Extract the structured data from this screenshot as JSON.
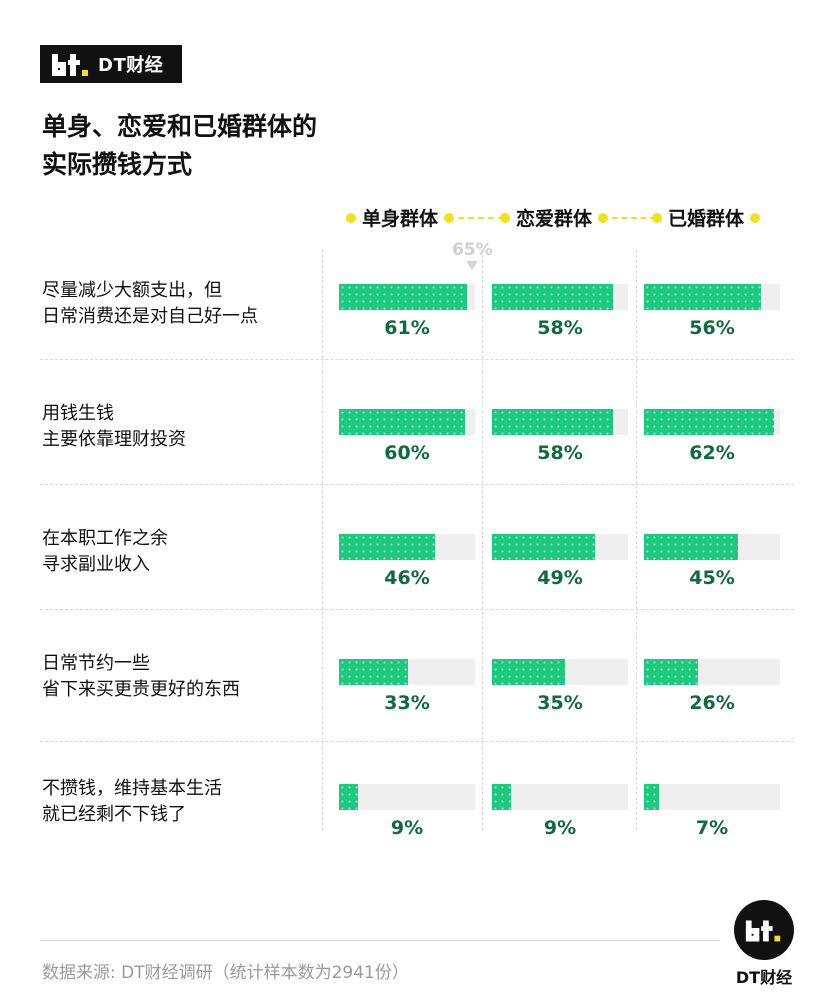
{
  "brand": {
    "name": "DT财经"
  },
  "title": {
    "line1": "单身、恋爱和已婚群体的",
    "line2": "实际攒钱方式"
  },
  "legend": [
    "单身群体",
    "恋爱群体",
    "已婚群体"
  ],
  "marker": {
    "label": "65%"
  },
  "chart_data": {
    "type": "bar",
    "title": "单身、恋爱和已婚群体的实际攒钱方式",
    "categories": [
      [
        "尽量减少大额支出，但",
        "日常消费还是对自己好一点"
      ],
      [
        "用钱生钱",
        "主要依靠理财投资"
      ],
      [
        "在本职工作之余",
        "寻求副业收入"
      ],
      [
        "日常节约一些",
        "省下来买更贵更好的东西"
      ],
      [
        "不攒钱，维持基本生活",
        "就已经剩不下钱了"
      ]
    ],
    "series": [
      {
        "name": "单身群体",
        "values": [
          61,
          60,
          46,
          33,
          9
        ]
      },
      {
        "name": "恋爱群体",
        "values": [
          58,
          58,
          49,
          35,
          9
        ]
      },
      {
        "name": "已婚群体",
        "values": [
          56,
          62,
          45,
          26,
          7
        ]
      }
    ],
    "xlim": [
      0,
      65
    ],
    "value_suffix": "%",
    "colors": {
      "bar": "#1cc97f",
      "track": "#efefef",
      "value_text": "#0f6b3f",
      "legend_dot": "#f2e21b"
    }
  },
  "footer": {
    "source": "数据来源: DT财经调研（统计样本数为2941份）",
    "logo_text": "DT财经"
  }
}
